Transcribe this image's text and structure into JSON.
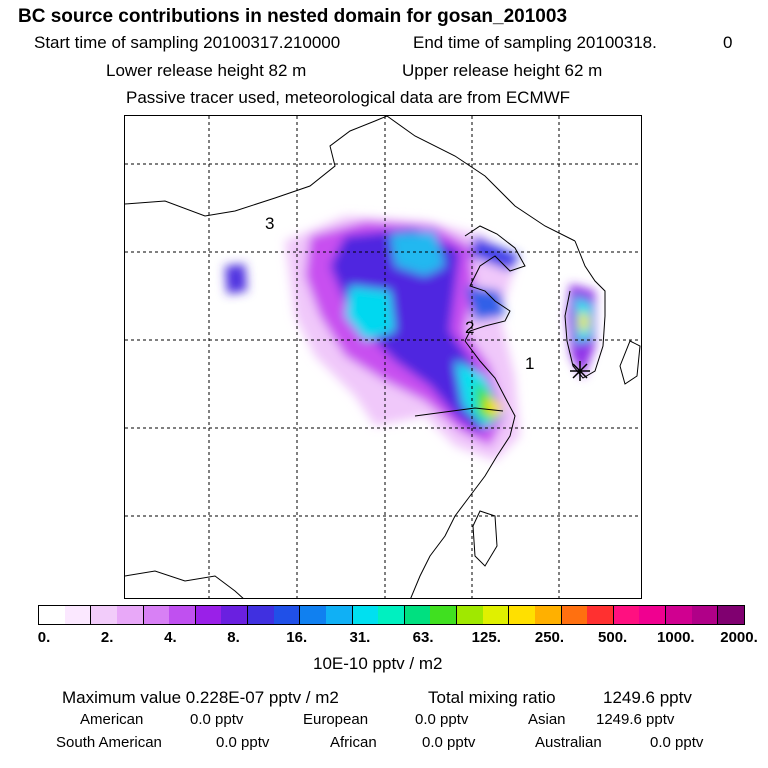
{
  "header": {
    "title": "BC  source contributions in nested domain for gosan_201003",
    "start_label": "Start time of sampling 20100317.210000",
    "end_label": "End time of sampling 20100318.",
    "end_suffix": "0",
    "lower_release": "Lower release height   82 m",
    "upper_release": "Upper release height   62 m",
    "tracer_note": "Passive tracer used, meteorological data are from ECMWF"
  },
  "map": {
    "labels": [
      {
        "id": "receptor-3",
        "text": "3"
      },
      {
        "id": "receptor-2",
        "text": "2"
      },
      {
        "id": "receptor-1",
        "text": "1"
      }
    ],
    "receptor_marker": "asterisk-icon"
  },
  "colorbar": {
    "colors": [
      "#ffffff",
      "#fbe8ff",
      "#f2ccfa",
      "#e8a8f8",
      "#d880f5",
      "#c050f0",
      "#9a20e8",
      "#6a20e0",
      "#4030e0",
      "#2050e8",
      "#1080f0",
      "#10b0f5",
      "#00e0f0",
      "#00f0c0",
      "#00e080",
      "#40e020",
      "#a0e800",
      "#e0f000",
      "#ffe000",
      "#ffb000",
      "#ff7010",
      "#ff3030",
      "#ff1080",
      "#f00090",
      "#d00090",
      "#b00088",
      "#800070"
    ],
    "ticks": [
      "0.",
      "2.",
      "4.",
      "8.",
      "16.",
      "31.",
      "63.",
      "125.",
      "250.",
      "500.",
      "1000.",
      "2000."
    ],
    "unit": "10E-10 pptv / m2"
  },
  "footer": {
    "max_value": "Maximum value  0.228E-07 pptv / m2",
    "total_mixing": "Total mixing ratio",
    "total_mixing_value": "1249.6 pptv",
    "rows": [
      [
        {
          "name": "American",
          "value": "0.0 pptv"
        },
        {
          "name": "European",
          "value": "0.0 pptv"
        },
        {
          "name": "Asian",
          "value": "1249.6 pptv"
        }
      ],
      [
        {
          "name": "South American",
          "value": "0.0 pptv"
        },
        {
          "name": "African",
          "value": "0.0 pptv"
        },
        {
          "name": "Australian",
          "value": "0.0 pptv"
        }
      ]
    ]
  }
}
